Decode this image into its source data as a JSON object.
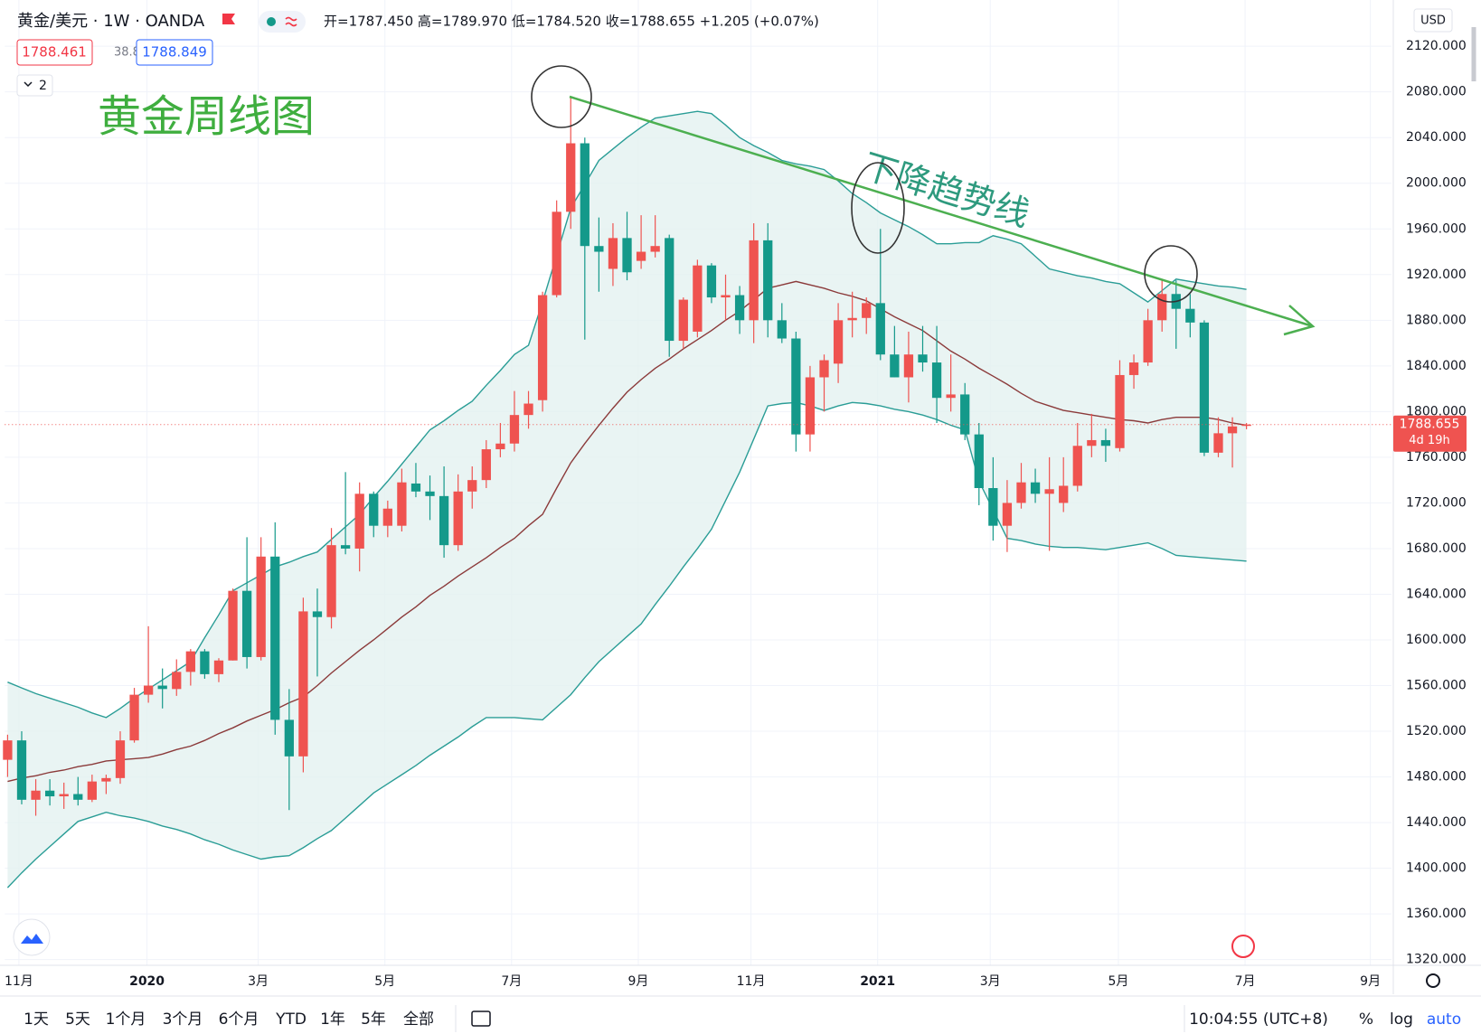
{
  "chart_data": {
    "type": "candlestick",
    "title": "黄金/美元 · 1W · OANDA",
    "ohlc_text": "开=1787.450 高=1789.970 低=1784.520 收=1788.655 +1.205 (+0.07%)",
    "bid": "1788.461",
    "spread": "38.8",
    "ask": "1788.849",
    "indicators_toggle": "2",
    "currency": "USD",
    "annotation": "黄金周线图",
    "trend_label": "下降趋势线",
    "last_price_label": "1788.655",
    "countdown": "4d 19h",
    "up_color": "#ef5350",
    "down_color": "#14998a",
    "open": [
      1495,
      1512,
      1460,
      1468,
      1463,
      1465,
      1460,
      1476,
      1479,
      1512,
      1552,
      1560,
      1557,
      1572,
      1590,
      1570,
      1582,
      1643,
      1585,
      1673,
      1530,
      1498,
      1625,
      1620,
      1683,
      1680,
      1728,
      1700,
      1700,
      1737,
      1730,
      1726,
      1683,
      1730,
      1740,
      1767,
      1772,
      1797,
      1810,
      1902,
      1975,
      2035,
      1945,
      1925,
      1952,
      1932,
      1940,
      1952,
      1862,
      1870,
      1928,
      1900,
      1902,
      1880,
      1950,
      1880,
      1864,
      1780,
      1830,
      1842,
      1880,
      1882,
      1895,
      1850,
      1830,
      1850,
      1843,
      1812,
      1815,
      1780,
      1733,
      1700,
      1720,
      1738,
      1728,
      1720,
      1735,
      1770,
      1775,
      1768,
      1832,
      1843,
      1880,
      1903,
      1890,
      1878,
      1764,
      1781,
      1787.45
    ],
    "high": [
      1517,
      1520,
      1478,
      1478,
      1475,
      1480,
      1482,
      1482,
      1520,
      1558,
      1612,
      1575,
      1583,
      1592,
      1592,
      1584,
      1645,
      1690,
      1690,
      1703,
      1557,
      1637,
      1645,
      1698,
      1747,
      1738,
      1730,
      1722,
      1750,
      1755,
      1744,
      1752,
      1745,
      1752,
      1775,
      1790,
      1818,
      1818,
      1905,
      1985,
      2075,
      2040,
      1970,
      1965,
      1975,
      1972,
      1972,
      1955,
      1900,
      1933,
      1930,
      1920,
      1910,
      1965,
      1965,
      1895,
      1870,
      1840,
      1850,
      1895,
      1905,
      1900,
      1960,
      1875,
      1870,
      1875,
      1875,
      1850,
      1825,
      1790,
      1760,
      1740,
      1755,
      1750,
      1760,
      1760,
      1790,
      1798,
      1785,
      1845,
      1850,
      1890,
      1915,
      1915,
      1903,
      1880,
      1795,
      1795,
      1789.97
    ],
    "low": [
      1480,
      1456,
      1446,
      1455,
      1452,
      1455,
      1458,
      1465,
      1474,
      1510,
      1545,
      1540,
      1551,
      1560,
      1566,
      1563,
      1582,
      1575,
      1582,
      1517,
      1451,
      1484,
      1568,
      1610,
      1675,
      1660,
      1690,
      1690,
      1695,
      1725,
      1705,
      1672,
      1678,
      1715,
      1733,
      1760,
      1765,
      1785,
      1800,
      1900,
      1960,
      1863,
      1905,
      1910,
      1915,
      1925,
      1935,
      1848,
      1855,
      1865,
      1895,
      1880,
      1868,
      1860,
      1865,
      1860,
      1765,
      1765,
      1800,
      1825,
      1865,
      1868,
      1845,
      1830,
      1808,
      1835,
      1790,
      1800,
      1775,
      1718,
      1687,
      1677,
      1715,
      1720,
      1678,
      1712,
      1730,
      1760,
      1756,
      1765,
      1820,
      1840,
      1870,
      1855,
      1865,
      1761,
      1760,
      1751,
      1784.52
    ],
    "close": [
      1512,
      1460,
      1468,
      1463,
      1465,
      1460,
      1476,
      1479,
      1512,
      1552,
      1560,
      1557,
      1572,
      1590,
      1570,
      1582,
      1643,
      1585,
      1673,
      1530,
      1498,
      1625,
      1620,
      1683,
      1680,
      1728,
      1700,
      1715,
      1738,
      1730,
      1726,
      1683,
      1730,
      1740,
      1767,
      1772,
      1797,
      1807,
      1902,
      1975,
      2035,
      1945,
      1940,
      1952,
      1922,
      1940,
      1945,
      1862,
      1898,
      1928,
      1900,
      1902,
      1880,
      1950,
      1880,
      1864,
      1780,
      1830,
      1845,
      1880,
      1882,
      1895,
      1850,
      1830,
      1850,
      1843,
      1812,
      1815,
      1780,
      1733,
      1700,
      1720,
      1738,
      1728,
      1732,
      1735,
      1770,
      1775,
      1770,
      1832,
      1843,
      1880,
      1903,
      1890,
      1878,
      1764,
      1781,
      1787,
      1788.655
    ],
    "bands": {
      "upper_color": "#2a9d96",
      "middle_color": "#8b3a3a",
      "fill": "#e4f1f0",
      "upper": [
        1563,
        1558,
        1553,
        1549,
        1545,
        1541,
        1536,
        1532,
        1540,
        1549,
        1557,
        1565,
        1573,
        1581,
        1602,
        1622,
        1643,
        1650,
        1657,
        1664,
        1668,
        1673,
        1677,
        1688,
        1699,
        1710,
        1725,
        1739,
        1754,
        1769,
        1784,
        1792,
        1801,
        1809,
        1823,
        1836,
        1850,
        1858,
        1896,
        1937,
        1978,
        1999,
        2020,
        2030,
        2040,
        2049,
        2057,
        2059,
        2061,
        2063,
        2061,
        2051,
        2040,
        2033,
        2027,
        2020,
        2017,
        2015,
        2012,
        2002,
        1991,
        1983,
        1974,
        1968,
        1962,
        1955,
        1947,
        1947,
        1948,
        1948,
        1954,
        1951,
        1947,
        1936,
        1925,
        1922,
        1919,
        1917,
        1914,
        1912,
        1904,
        1896,
        1906,
        1916,
        1914,
        1912,
        1910,
        1909,
        1907
      ],
      "middle": [
        1476,
        1479,
        1481,
        1484,
        1486,
        1489,
        1491,
        1494,
        1495,
        1496,
        1497,
        1500,
        1504,
        1507,
        1512,
        1518,
        1523,
        1529,
        1534,
        1539,
        1545,
        1550,
        1560,
        1571,
        1581,
        1591,
        1600,
        1610,
        1620,
        1629,
        1639,
        1647,
        1656,
        1664,
        1672,
        1681,
        1689,
        1700,
        1710,
        1733,
        1755,
        1772,
        1788,
        1803,
        1817,
        1828,
        1838,
        1846,
        1855,
        1863,
        1871,
        1880,
        1888,
        1898,
        1908,
        1911,
        1914,
        1911,
        1908,
        1904,
        1901,
        1897,
        1890,
        1883,
        1877,
        1871,
        1862,
        1853,
        1846,
        1838,
        1831,
        1824,
        1816,
        1809,
        1805,
        1801,
        1799,
        1797,
        1795,
        1793,
        1792,
        1790,
        1793,
        1795,
        1795,
        1795,
        1793,
        1790,
        1788
      ],
      "lower": [
        1383,
        1396,
        1408,
        1419,
        1430,
        1441,
        1445,
        1449,
        1446,
        1444,
        1441,
        1437,
        1434,
        1430,
        1425,
        1421,
        1416,
        1412,
        1408,
        1410,
        1411,
        1418,
        1426,
        1433,
        1444,
        1455,
        1466,
        1474,
        1482,
        1490,
        1499,
        1507,
        1515,
        1524,
        1532,
        1532,
        1532,
        1531,
        1530,
        1541,
        1552,
        1567,
        1581,
        1592,
        1603,
        1614,
        1631,
        1647,
        1664,
        1680,
        1697,
        1722,
        1747,
        1776,
        1805,
        1807,
        1808,
        1805,
        1801,
        1805,
        1808,
        1807,
        1805,
        1802,
        1800,
        1797,
        1793,
        1788,
        1784,
        1739,
        1714,
        1689,
        1687,
        1684,
        1682,
        1681,
        1681,
        1680,
        1679,
        1681,
        1683,
        1685,
        1680,
        1674,
        1673,
        1672,
        1671,
        1670,
        1669
      ]
    },
    "xlim": [
      -0.2,
      98.3
    ],
    "xticks": [
      {
        "value": 0.8,
        "label": "11月"
      },
      {
        "value": 9.9,
        "label": "2020"
      },
      {
        "value": 17.8,
        "label": "3月"
      },
      {
        "value": 26.8,
        "label": "5月"
      },
      {
        "value": 35.8,
        "label": "7月"
      },
      {
        "value": 44.8,
        "label": "9月"
      },
      {
        "value": 52.8,
        "label": "11月"
      },
      {
        "value": 61.8,
        "label": "2021"
      },
      {
        "value": 69.8,
        "label": "3月"
      },
      {
        "value": 78.9,
        "label": "5月"
      },
      {
        "value": 87.9,
        "label": "7月"
      },
      {
        "value": 96.8,
        "label": "9月"
      }
    ],
    "ylim": [
      1315,
      2160.5
    ],
    "yticks": [
      {
        "value": 1320,
        "label": "1320.000"
      },
      {
        "value": 1360,
        "label": "1360.000"
      },
      {
        "value": 1400,
        "label": "1400.000"
      },
      {
        "value": 1440,
        "label": "1440.000"
      },
      {
        "value": 1480,
        "label": "1480.000"
      },
      {
        "value": 1520,
        "label": "1520.000"
      },
      {
        "value": 1560,
        "label": "1560.000"
      },
      {
        "value": 1600,
        "label": "1600.000"
      },
      {
        "value": 1640,
        "label": "1640.000"
      },
      {
        "value": 1680,
        "label": "1680.000"
      },
      {
        "value": 1720,
        "label": "1720.000"
      },
      {
        "value": 1760,
        "label": "1760.000"
      },
      {
        "value": 1800,
        "label": "1800.000"
      },
      {
        "value": 1840,
        "label": "1840.000"
      },
      {
        "value": 1880,
        "label": "1880.000"
      },
      {
        "value": 1920,
        "label": "1920.000"
      },
      {
        "value": 1960,
        "label": "1960.000"
      },
      {
        "value": 2000,
        "label": "2000.000"
      },
      {
        "value": 2040,
        "label": "2040.000"
      },
      {
        "value": 2080,
        "label": "2080.000"
      },
      {
        "value": 2120,
        "label": "2120.000"
      }
    ],
    "grid": true
  },
  "toolbar": {
    "ranges": [
      "1天",
      "5天",
      "1个月",
      "3个月",
      "6个月",
      "YTD",
      "1年",
      "5年",
      "全部"
    ],
    "clock": "10:04:55 (UTC+8)",
    "options": [
      "%",
      "log",
      "auto"
    ]
  }
}
